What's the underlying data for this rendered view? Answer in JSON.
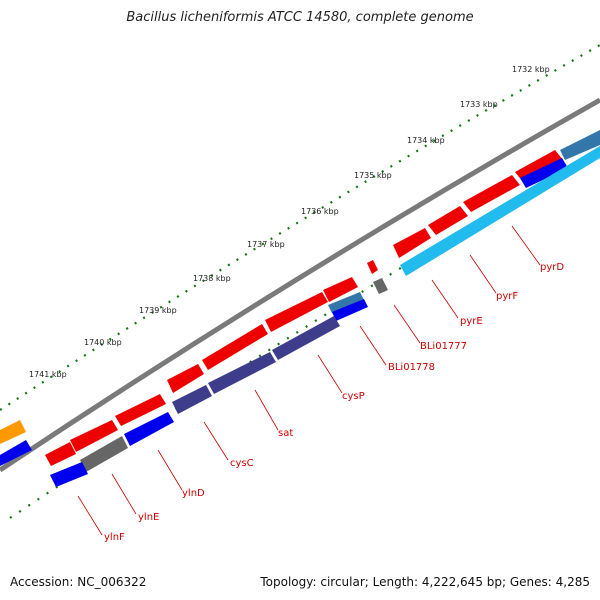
{
  "title": "Bacillus licheniformis ATCC 14580, complete genome",
  "footer": {
    "accession": "Accession: NC_006322",
    "topology": "Topology: circular; Length: 4,222,645 bp; Genes: 4,285"
  },
  "ticks": [
    {
      "label": "1732 kbp"
    },
    {
      "label": "1733 kbp"
    },
    {
      "label": "1734 kbp"
    },
    {
      "label": "1735 kbp"
    },
    {
      "label": "1736 kbp"
    },
    {
      "label": "1737 kbp"
    },
    {
      "label": "1738 kbp"
    },
    {
      "label": "1739 kbp"
    },
    {
      "label": "1740 kbp"
    },
    {
      "label": "1741 kbp"
    }
  ],
  "genes": [
    {
      "label": "pyrD"
    },
    {
      "label": "pyrF"
    },
    {
      "label": "pyrE"
    },
    {
      "label": "BLi01777"
    },
    {
      "label": "BLi01778"
    },
    {
      "label": "cysP"
    },
    {
      "label": "sat"
    },
    {
      "label": "cysC"
    },
    {
      "label": "ylnD"
    },
    {
      "label": "ylnE"
    },
    {
      "label": "ylnF"
    }
  ],
  "colors": {
    "backbone": "#7a7a7a",
    "cds_forward": "#ee0000",
    "label_red": "#cc0000",
    "cds_blue": "#0000ee",
    "cds_cyan": "#22bbee",
    "cds_steel": "#3377aa",
    "cds_purple": "#3d3d8c",
    "cds_gray": "#666666",
    "cds_orange": "#ff9900",
    "tick_green": "#117711"
  }
}
